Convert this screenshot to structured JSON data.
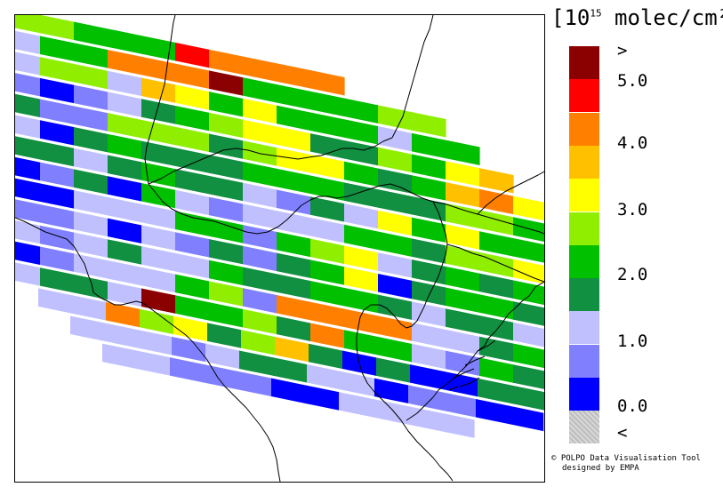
{
  "legend": {
    "title_prefix": "[10",
    "title_exp": "15",
    "title_suffix": " molec/cm²",
    "colors": [
      "#c8c8c8",
      "#0000ff",
      "#8080ff",
      "#c0c0ff",
      "#109040",
      "#00c000",
      "#90ee00",
      "#ffff00",
      "#ffc000",
      "#ff8000",
      "#ff0000",
      "#8b0000"
    ],
    "labels": [
      ">",
      "5.0",
      "4.0",
      "3.0",
      "2.0",
      "1.0",
      "0.0",
      "<"
    ]
  },
  "credit": {
    "line1": "© POLPO Data Visualisation Tool",
    "line2": "designed by EMPA"
  },
  "map": {
    "swath_rows": [
      [
        6,
        6,
        5,
        5,
        5,
        10,
        9,
        9,
        9,
        9
      ],
      [
        3,
        5,
        5,
        9,
        9,
        9,
        11,
        5,
        5,
        5,
        5,
        6,
        6
      ],
      [
        3,
        6,
        6,
        3,
        8,
        7,
        5,
        7,
        5,
        5,
        5,
        3,
        5,
        5
      ],
      [
        2,
        1,
        2,
        3,
        4,
        5,
        6,
        7,
        7,
        4,
        4,
        6,
        5,
        7,
        8
      ],
      [
        4,
        2,
        2,
        6,
        6,
        6,
        4,
        6,
        7,
        7,
        5,
        4,
        5,
        8,
        9,
        7
      ],
      [
        3,
        1,
        4,
        5,
        4,
        4,
        4,
        5,
        5,
        5,
        4,
        4,
        4,
        6,
        6,
        5
      ],
      [
        4,
        4,
        3,
        4,
        5,
        4,
        4,
        3,
        2,
        4,
        3,
        7,
        5,
        7,
        5,
        5
      ],
      [
        1,
        2,
        4,
        1,
        5,
        3,
        2,
        3,
        3,
        3,
        5,
        5,
        4,
        6,
        6,
        7,
        6
      ],
      [
        1,
        1,
        3,
        3,
        3,
        5,
        5,
        2,
        5,
        6,
        7,
        3,
        4,
        5,
        4,
        5,
        4
      ],
      [
        2,
        2,
        3,
        1,
        3,
        2,
        4,
        2,
        4,
        5,
        7,
        1,
        4,
        5,
        5,
        4,
        5
      ],
      [
        3,
        2,
        3,
        4,
        3,
        3,
        5,
        4,
        4,
        5,
        5,
        4,
        3,
        4,
        4,
        3,
        5
      ],
      [
        1,
        2,
        3,
        3,
        3,
        5,
        6,
        2,
        9,
        9,
        9,
        9,
        3,
        3,
        4,
        5,
        1
      ],
      [
        3,
        4,
        4,
        3,
        11,
        5,
        5,
        6,
        4,
        9,
        5,
        5,
        3,
        2,
        5,
        4,
        4
      ],
      [
        3,
        3,
        9,
        6,
        7,
        4,
        6,
        8,
        4,
        1,
        4,
        1,
        1,
        4,
        4,
        4
      ],
      [
        3,
        3,
        3,
        2,
        3,
        4,
        4,
        3,
        3,
        1,
        2,
        2,
        1,
        1,
        3
      ],
      [
        3,
        3,
        2,
        2,
        2,
        1,
        1,
        3,
        3,
        3,
        3
      ]
    ]
  }
}
